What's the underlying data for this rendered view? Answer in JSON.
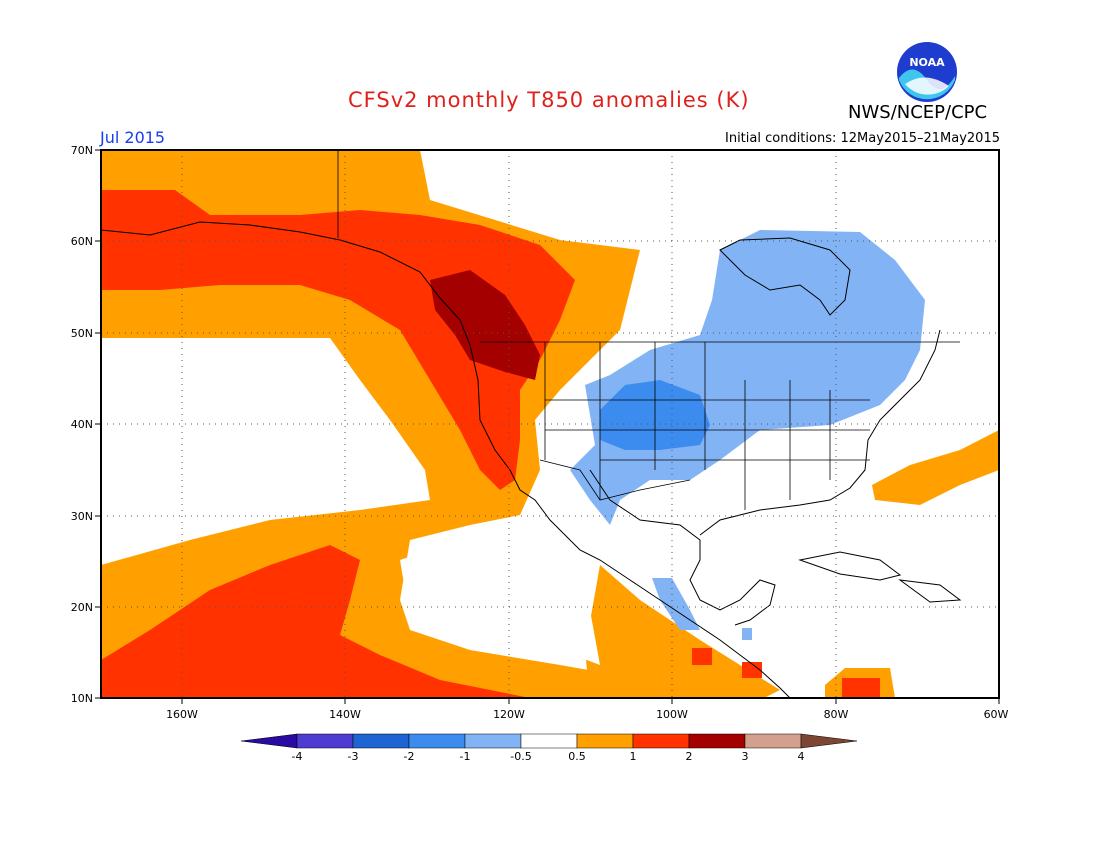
{
  "header": {
    "title": "CFSv2 monthly T850 anomalies (K)",
    "agency": "NWS/NCEP/CPC",
    "logo_text": "NOAA",
    "target_month": "Jul 2015",
    "initial_conditions": "Initial conditions: 12May2015–21May2015"
  },
  "map": {
    "lon_range": [
      -170,
      -60
    ],
    "lat_range": [
      10,
      70
    ],
    "lat_ticks": [
      "70N",
      "60N",
      "50N",
      "40N",
      "30N",
      "20N",
      "10N"
    ],
    "lon_ticks": [
      "160W",
      "140W",
      "120W",
      "100W",
      "80W",
      "60W"
    ]
  },
  "colorbar": {
    "labels": [
      "-4",
      "-3",
      "-2",
      "-1",
      "-0.5",
      "0.5",
      "1",
      "2",
      "3",
      "4"
    ],
    "colors": [
      "#2a0aa0",
      "#4e3cd2",
      "#1e64d2",
      "#3c8cf0",
      "#82b4f5",
      "#ffffff",
      "#ffa000",
      "#ff3200",
      "#a50000",
      "#d2a08c",
      "#7d4632"
    ]
  }
}
